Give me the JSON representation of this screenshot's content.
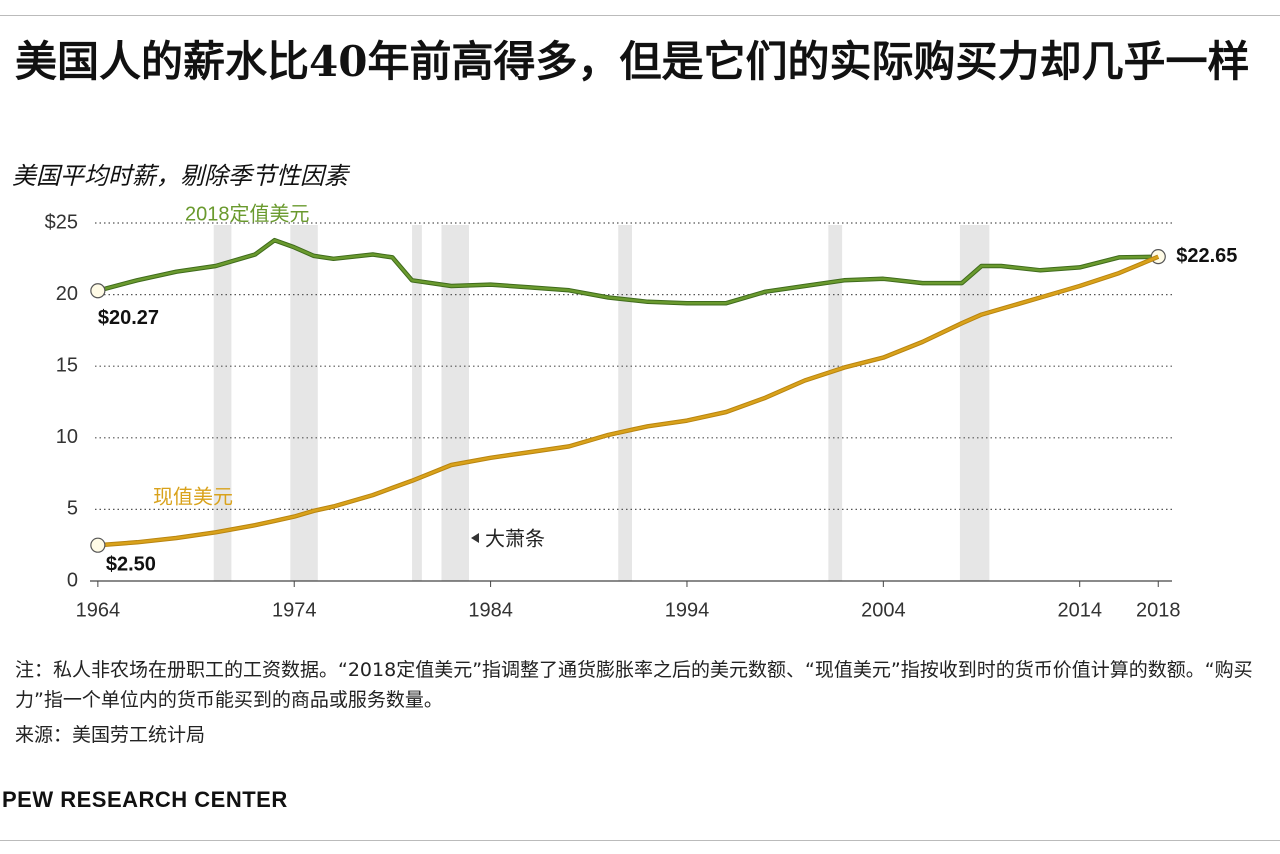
{
  "chart_data": {
    "type": "line",
    "title": "美国人的薪水比40年前高得多，但是它们的实际购买力却几乎一样",
    "subtitle": "美国平均时薪，剔除季节性因素",
    "x": [
      1964,
      1966,
      1968,
      1970,
      1972,
      1973,
      1974,
      1975,
      1976,
      1978,
      1979,
      1980,
      1982,
      1984,
      1986,
      1988,
      1990,
      1992,
      1994,
      1996,
      1998,
      2000,
      2002,
      2004,
      2006,
      2008,
      2009,
      2010,
      2012,
      2014,
      2016,
      2018
    ],
    "series": [
      {
        "name": "2018定值美元",
        "color": "#6a9a2e",
        "values": [
          20.27,
          21.0,
          21.6,
          22.0,
          22.8,
          23.8,
          23.3,
          22.7,
          22.5,
          22.8,
          22.6,
          21.0,
          20.6,
          20.7,
          20.5,
          20.3,
          19.8,
          19.5,
          19.4,
          19.4,
          20.2,
          20.6,
          21.0,
          21.1,
          20.8,
          20.8,
          22.0,
          22.0,
          21.7,
          21.9,
          22.6,
          22.65
        ],
        "value_labels": [
          "$20.27",
          null,
          null,
          null,
          null,
          null,
          null,
          null,
          null,
          null,
          null,
          null,
          null,
          null,
          null,
          null,
          null,
          null,
          null,
          null,
          null,
          null,
          null,
          null,
          null,
          null,
          null,
          null,
          null,
          null,
          null,
          "$22.65"
        ]
      },
      {
        "name": "现值美元",
        "color": "#d9a21b",
        "values": [
          2.5,
          2.7,
          3.0,
          3.4,
          3.9,
          4.2,
          4.5,
          4.9,
          5.2,
          6.0,
          6.5,
          7.0,
          8.1,
          8.6,
          9.0,
          9.4,
          10.2,
          10.8,
          11.2,
          11.8,
          12.8,
          14.0,
          14.9,
          15.6,
          16.7,
          18.0,
          18.6,
          19.0,
          19.8,
          20.6,
          21.5,
          22.65
        ],
        "value_labels": [
          "$2.50",
          null,
          null,
          null,
          null,
          null,
          null,
          null,
          null,
          null,
          null,
          null,
          null,
          null,
          null,
          null,
          null,
          null,
          null,
          null,
          null,
          null,
          null,
          null,
          null,
          null,
          null,
          null,
          null,
          null,
          null,
          null
        ]
      }
    ],
    "recessions": [
      [
        1969.9,
        1970.8
      ],
      [
        1973.8,
        1975.2
      ],
      [
        1980.0,
        1980.5
      ],
      [
        1981.5,
        1982.9
      ],
      [
        1990.5,
        1991.2
      ],
      [
        2001.2,
        2001.9
      ],
      [
        2007.9,
        2009.4
      ]
    ],
    "recession_label": "大萧条",
    "xlim": [
      1963.6,
      2018.7
    ],
    "xticks": [
      1964,
      1974,
      1984,
      1994,
      2004,
      2014,
      2018
    ],
    "ylim": [
      0,
      25
    ],
    "yticks": [
      {
        "value": 25,
        "label": "$25"
      },
      20,
      15,
      10,
      5,
      0
    ],
    "grid": true,
    "note": "注：私人非农场在册职工的工资数据。“2018定值美元”指调整了通货膨胀率之后的美元数额、“现值美元”指按收到时的货币价值计算的数额。“购买力”指一个单位内的货币能买到的商品或服务数量。",
    "source": "来源：美国劳工统计局",
    "brand": "PEW RESEARCH CENTER"
  }
}
